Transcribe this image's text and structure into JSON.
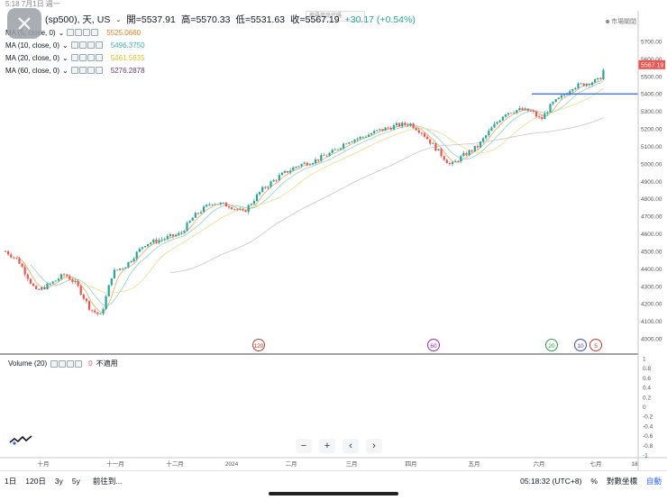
{
  "status_bar": {
    "time_text": "5:18  7月1日 週一"
  },
  "legend": {
    "symbol": "(sp500), 天, US",
    "open_label": "開=5537.91",
    "high_label": "高=5570.33",
    "low_label": "低=5531.63",
    "close_label": "收=5567.19",
    "change_label": "+30.17 (+0.54%)",
    "ma": [
      {
        "name": "MA (5, close, 0)",
        "value": "5525.0660",
        "color": "#e57c1f"
      },
      {
        "name": "MA (10, close, 0)",
        "value": "5496.3750",
        "color": "#3fb3b4"
      },
      {
        "name": "MA (20, close, 0)",
        "value": "5461.5635",
        "color": "#e6c229"
      },
      {
        "name": "MA (60, close, 0)",
        "value": "5276.2878",
        "color": "#5e3a8c"
      }
    ]
  },
  "search_hint": "搜尋商品代碼",
  "market_status": "市場關閉",
  "price_axis": {
    "labels": [
      "5700.00",
      "5600.00",
      "5500.00",
      "5400.00",
      "5300.00",
      "5200.00",
      "5100.00",
      "5000.00",
      "4900.00",
      "4800.00",
      "4700.00",
      "4600.00",
      "4500.00",
      "4400.00",
      "4300.00",
      "4200.00",
      "4100.00",
      "4000.00"
    ],
    "last_price": "5567.19",
    "horizontal_line_price": "5400.00"
  },
  "time_axis": {
    "labels": [
      "十月",
      "十一月",
      "十二月",
      "2024",
      "二月",
      "三月",
      "四月",
      "五月",
      "六月",
      "七月",
      "18"
    ]
  },
  "markers": [
    {
      "label": "120",
      "color": "#c0392b"
    },
    {
      "label": "60",
      "color": "#9b27af"
    },
    {
      "label": "20",
      "color": "#2e9e44"
    },
    {
      "label": "10",
      "color": "#3949ab"
    },
    {
      "label": "5",
      "color": "#c0392b"
    }
  ],
  "volume": {
    "title": "Volume (20)",
    "value": "0",
    "status": "不適用",
    "axis_labels": [
      "1",
      "0.8",
      "0.6",
      "0.4",
      "0.2",
      "0",
      "-0.2",
      "-0.4",
      "-0.6",
      "-0.8",
      "-1"
    ]
  },
  "zoom": {
    "out": "−",
    "in": "+",
    "prev": "‹",
    "next": "›"
  },
  "bottom_bar": {
    "ranges": [
      "1日",
      "120日",
      "3y",
      "5y"
    ],
    "goto": "前往到...",
    "time": "05:18:32 (UTC+8)",
    "percent": "%",
    "log": "對數坐標",
    "auto": "自動"
  },
  "colors": {
    "up": "#26a69a",
    "down": "#ef5350",
    "hline": "#2962ff"
  }
}
